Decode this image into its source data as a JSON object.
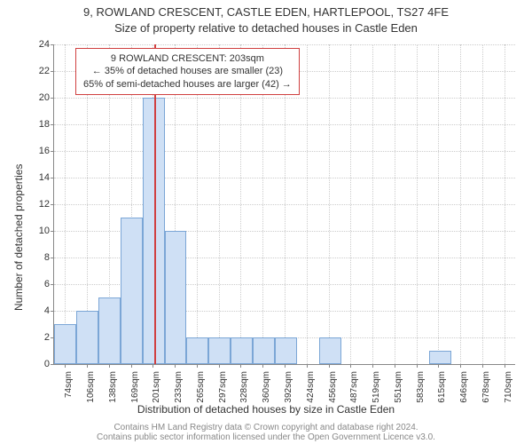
{
  "title_main": "9, ROWLAND CRESCENT, CASTLE EDEN, HARTLEPOOL, TS27 4FE",
  "title_sub": "Size of property relative to detached houses in Castle Eden",
  "annot": {
    "line1": "9 ROWLAND CRESCENT: 203sqm",
    "line2": "← 35% of detached houses are smaller (23)",
    "line3": "65% of semi-detached houses are larger (42) →",
    "border_color": "#d04040"
  },
  "ylabel": "Number of detached properties",
  "xlabel": "Distribution of detached houses by size in Castle Eden",
  "footer": {
    "line1": "Contains HM Land Registry data © Crown copyright and database right 2024.",
    "line2": "Contains public sector information licensed under the Open Government Licence v3.0."
  },
  "chart": {
    "type": "histogram",
    "xlim": [
      58,
      726
    ],
    "ylim": [
      0,
      24
    ],
    "ytick_step": 2,
    "xtick_start": 74,
    "xtick_step": 31.8,
    "xtick_count": 21,
    "xtick_suffix": "sqm",
    "bar_color": "#cfe0f5",
    "bar_border": "#7ba6d6",
    "grid_color": "#cccccc",
    "axis_color": "#888888",
    "background_color": "#ffffff",
    "marker_x": 203,
    "marker_color": "#d04040",
    "bars": [
      {
        "x0": 58,
        "x1": 90,
        "y": 3
      },
      {
        "x0": 90,
        "x1": 122,
        "y": 4
      },
      {
        "x0": 122,
        "x1": 154,
        "y": 5
      },
      {
        "x0": 154,
        "x1": 186,
        "y": 11
      },
      {
        "x0": 186,
        "x1": 218,
        "y": 20
      },
      {
        "x0": 218,
        "x1": 250,
        "y": 10
      },
      {
        "x0": 250,
        "x1": 282,
        "y": 2
      },
      {
        "x0": 282,
        "x1": 314,
        "y": 2
      },
      {
        "x0": 314,
        "x1": 346,
        "y": 2
      },
      {
        "x0": 346,
        "x1": 378,
        "y": 2
      },
      {
        "x0": 378,
        "x1": 410,
        "y": 2
      },
      {
        "x0": 442,
        "x1": 474,
        "y": 2
      },
      {
        "x0": 601,
        "x1": 633,
        "y": 1
      }
    ]
  },
  "title_fontsize": 13,
  "label_fontsize": 12,
  "tick_fontsize": 11
}
